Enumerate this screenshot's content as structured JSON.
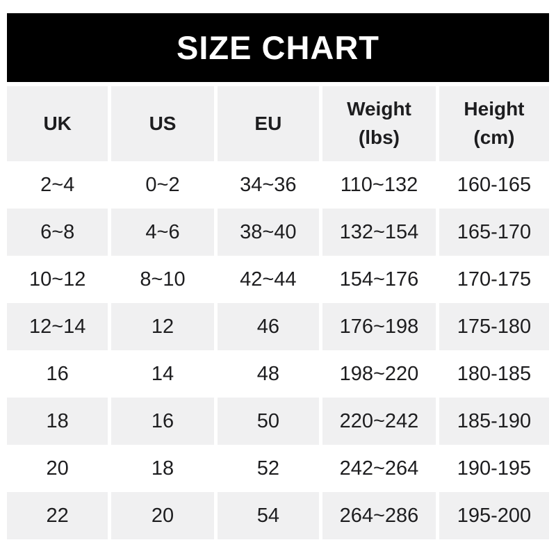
{
  "chart_data": {
    "type": "table",
    "title": "SIZE CHART",
    "columns": [
      "UK",
      "US",
      "EU",
      "Weight\n(lbs)",
      "Height\n(cm)"
    ],
    "rows": [
      [
        "2~4",
        "0~2",
        "34~36",
        "110~132",
        "160-165"
      ],
      [
        "6~8",
        "4~6",
        "38~40",
        "132~154",
        "165-170"
      ],
      [
        "10~12",
        "8~10",
        "42~44",
        "154~176",
        "170-175"
      ],
      [
        "12~14",
        "12",
        "46",
        "176~198",
        "175-180"
      ],
      [
        "16",
        "14",
        "48",
        "198~220",
        "180-185"
      ],
      [
        "18",
        "16",
        "50",
        "220~242",
        "185-190"
      ],
      [
        "20",
        "18",
        "52",
        "242~264",
        "190-195"
      ],
      [
        "22",
        "20",
        "54",
        "264~286",
        "195-200"
      ]
    ],
    "layout": {
      "row_striping": "odd rows white, even rows gray",
      "grid": "off"
    }
  },
  "colors": {
    "banner_bg": "#000000",
    "banner_text": "#ffffff",
    "row_alt_bg": "#f0f0f1",
    "text": "#1d1d1f"
  }
}
